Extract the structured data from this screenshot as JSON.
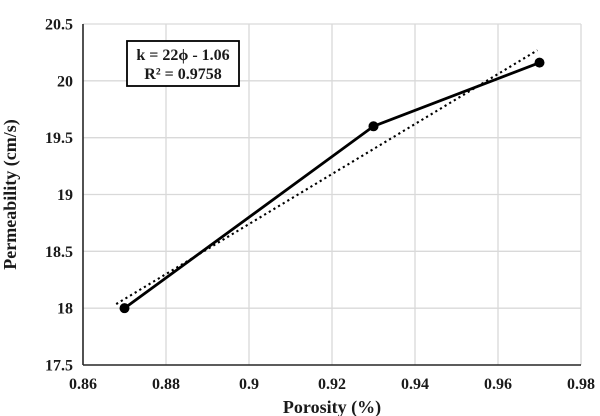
{
  "chart_data": {
    "type": "line",
    "title": "",
    "xlabel": "Porosity (%)",
    "ylabel": "Permeability (cm/s)",
    "xlim": [
      0.86,
      0.98
    ],
    "ylim": [
      17.5,
      20.5
    ],
    "x_ticks": [
      0.86,
      0.88,
      0.9,
      0.92,
      0.94,
      0.96,
      0.98
    ],
    "x_tick_labels": [
      "0.86",
      "0.88",
      "0.9",
      "0.92",
      "0.94",
      "0.96",
      "0.98"
    ],
    "y_ticks": [
      17.5,
      18,
      18.5,
      19,
      19.5,
      20,
      20.5
    ],
    "y_tick_labels": [
      "17.5",
      "18",
      "18.5",
      "19",
      "19.5",
      "20",
      "20.5"
    ],
    "grid": true,
    "legend": "none",
    "series": [
      {
        "name": "measured-data",
        "style": "solid-line-with-circle-markers",
        "x": [
          0.87,
          0.93,
          0.97
        ],
        "y": [
          18,
          19.6,
          20.16
        ],
        "color": "#000000"
      },
      {
        "name": "trendline",
        "style": "dotted-line",
        "equation_slope": 22,
        "equation_intercept": -1.06,
        "x_start": 0.868,
        "x_end": 0.9695,
        "color": "#000000"
      }
    ],
    "annotation": {
      "line1": "k = 22ϕ - 1.06",
      "line2": "R² = 0.9758"
    }
  },
  "colors": {
    "grid": "#d9d9d9",
    "axis": "#262626",
    "marker": "#000000",
    "background": "#ffffff"
  }
}
